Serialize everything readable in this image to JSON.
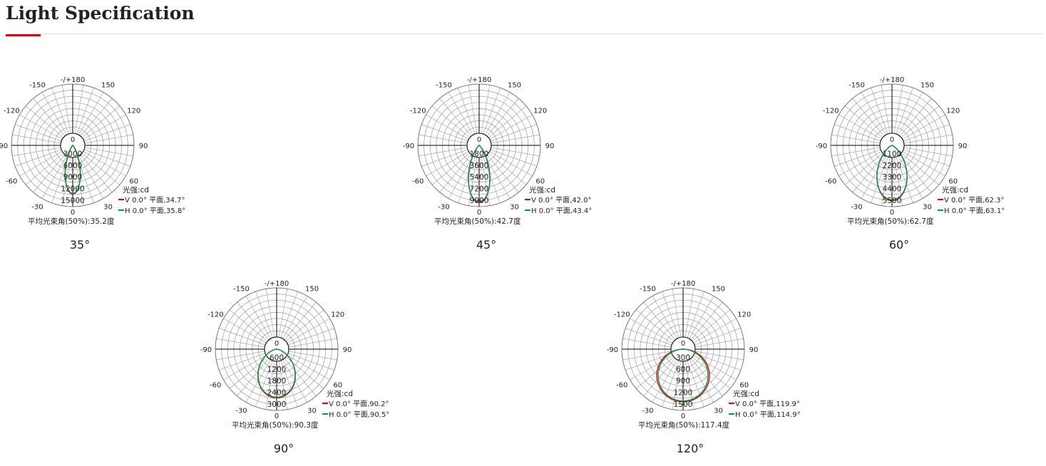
{
  "header": {
    "title": "Light Specification",
    "accent_color": "#e60012"
  },
  "legend_unit": "光强:cd",
  "colors": {
    "V": "#e60012",
    "H": "#009944"
  },
  "angle_labels": [
    "-/+180",
    "150",
    "120",
    "90",
    "60",
    "30",
    "0",
    "-30",
    "-60",
    "-90",
    "-120",
    "-150"
  ],
  "chart_data": [
    {
      "type": "polar",
      "caption": "35°",
      "center_label": "0",
      "ticks": [
        "3000",
        "6000",
        "9000",
        "12000",
        "15000"
      ],
      "scale_max": 15000,
      "peak": 12500,
      "V": {
        "label": "V 0.0° 平面,34.7°",
        "beam": 34.7
      },
      "H": {
        "label": "H 0.0° 平面,35.8°",
        "beam": 35.8
      },
      "avg": "平均光束角(50%):35.2度"
    },
    {
      "type": "polar",
      "caption": "45°",
      "center_label": "0",
      "ticks": [
        "1800",
        "3600",
        "5400",
        "7200",
        "9000"
      ],
      "scale_max": 9000,
      "peak": 8800,
      "V": {
        "label": "V 0.0° 平面,42.0°",
        "beam": 42.0
      },
      "H": {
        "label": "H 0.0° 平面,43.4°",
        "beam": 43.4
      },
      "avg": "平均光束角(50%):42.7度"
    },
    {
      "type": "polar",
      "caption": "60°",
      "center_label": "0",
      "ticks": [
        "1100",
        "2200",
        "3300",
        "4400",
        "5500"
      ],
      "scale_max": 5500,
      "peak": 5200,
      "V": {
        "label": "V 0.0° 平面,62.3°",
        "beam": 62.3
      },
      "H": {
        "label": "H 0.0° 平面,63.1°",
        "beam": 63.1
      },
      "avg": "平均光束角(50%):62.7度"
    },
    {
      "type": "polar",
      "caption": "90°",
      "center_label": "0",
      "ticks": [
        "600",
        "1200",
        "1800",
        "2400",
        "3000"
      ],
      "scale_max": 3000,
      "peak": 2500,
      "V": {
        "label": "V 0.0° 平面,90.2°",
        "beam": 90.2
      },
      "H": {
        "label": "H 0.0° 平面,90.5°",
        "beam": 90.5
      },
      "avg": "平均光束角(50%):90.3度"
    },
    {
      "type": "polar",
      "caption": "120°",
      "center_label": "0",
      "ticks": [
        "300",
        "600",
        "900",
        "1200",
        "1500"
      ],
      "scale_max": 1500,
      "peak": 1350,
      "V": {
        "label": "V 0.0° 平面,119.9°",
        "beam": 119.9
      },
      "H": {
        "label": "H 0.0° 平面,114.9°",
        "beam": 114.9
      },
      "avg": "平均光束角(50%):117.4度"
    }
  ]
}
